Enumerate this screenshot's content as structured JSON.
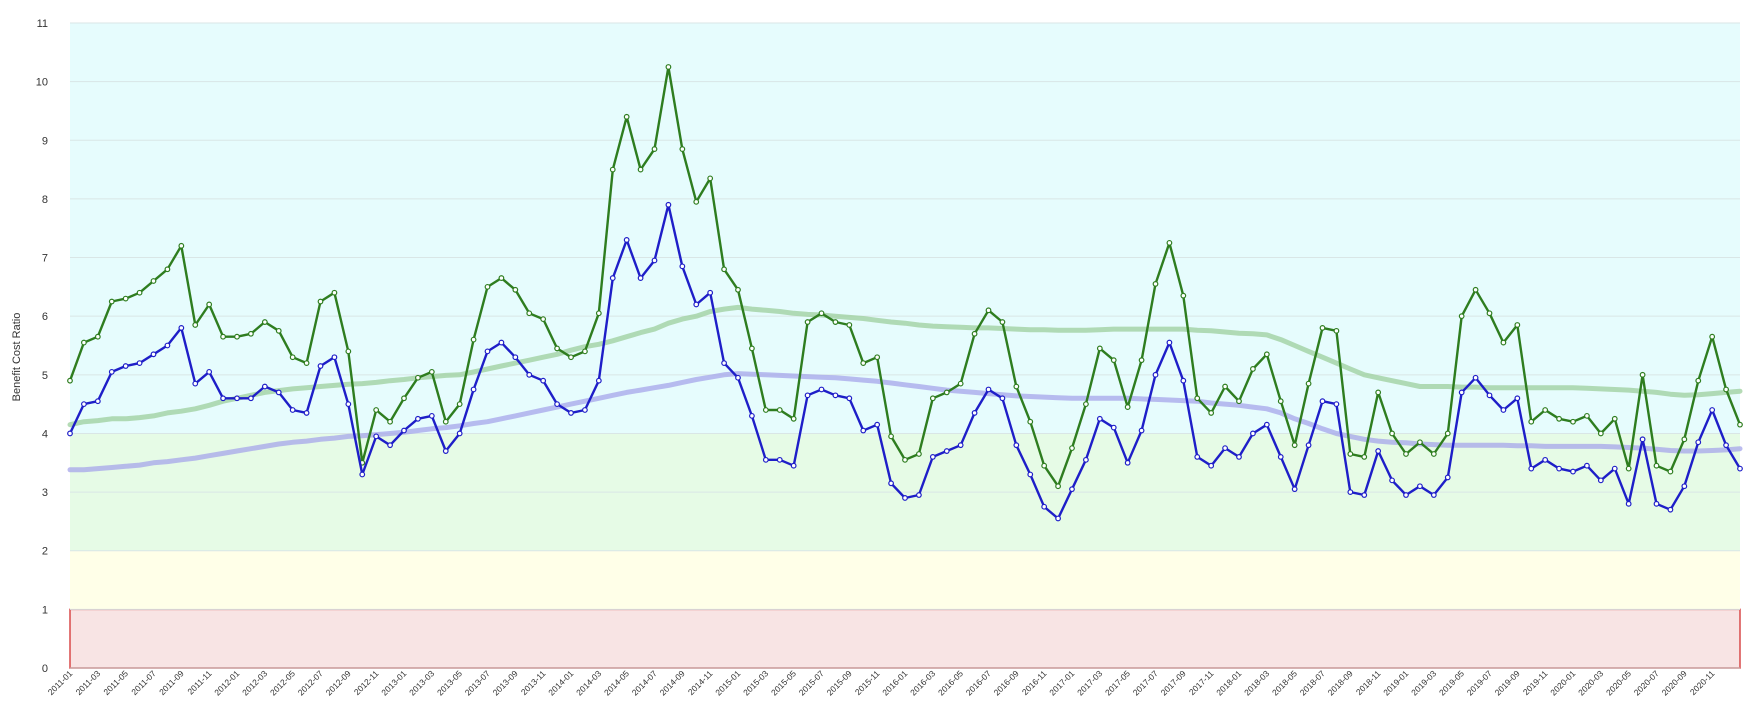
{
  "chart_data": {
    "type": "line",
    "title": "",
    "xlabel": "",
    "ylabel": "Benefit Cost Ratio",
    "ylim": [
      0,
      11
    ],
    "yticks": [
      "0",
      "1",
      "2",
      "3",
      "4",
      "5",
      "6",
      "7",
      "8",
      "9",
      "10",
      "11"
    ],
    "grid": true,
    "legend": "none",
    "bands": [
      {
        "from": 0,
        "to": 1,
        "color": "#f8e4e4",
        "outline": "#d94a4a"
      },
      {
        "from": 1,
        "to": 2,
        "color": "#ffffe8"
      },
      {
        "from": 2,
        "to": 4,
        "color": "#e6fbe6"
      },
      {
        "from": 4,
        "to": 11,
        "color": "#e6fcfd"
      }
    ],
    "xtick_labels": [
      "2011-01",
      "2011-03",
      "2011-05",
      "2011-07",
      "2011-09",
      "2011-11",
      "2012-01",
      "2012-03",
      "2012-05",
      "2012-07",
      "2012-09",
      "2012-11",
      "2013-01",
      "2013-03",
      "2013-05",
      "2013-07",
      "2013-09",
      "2013-11",
      "2014-01",
      "2014-03",
      "2014-05",
      "2014-07",
      "2014-09",
      "2014-11",
      "2015-01",
      "2015-03",
      "2015-05",
      "2015-07",
      "2015-09",
      "2015-11",
      "2016-01",
      "2016-03",
      "2016-05",
      "2016-07",
      "2016-09",
      "2016-11",
      "2017-01",
      "2017-03",
      "2017-05",
      "2017-07",
      "2017-09",
      "2017-11",
      "2018-01",
      "2018-03",
      "2018-05",
      "2018-07",
      "2018-09",
      "2018-11",
      "2019-01",
      "2019-03",
      "2019-05",
      "2019-07",
      "2019-09",
      "2019-11",
      "2020-01",
      "2020-03",
      "2020-05",
      "2020-07",
      "2020-09",
      "2020-11"
    ],
    "series": [
      {
        "color": "#2e7d1f",
        "marker": true,
        "values": [
          4.9,
          5.55,
          5.65,
          6.25,
          6.3,
          6.4,
          6.6,
          6.8,
          7.2,
          5.85,
          6.2,
          5.65,
          5.65,
          5.7,
          5.9,
          5.75,
          5.3,
          5.2,
          6.25,
          6.4,
          5.4,
          3.5,
          4.4,
          4.2,
          4.6,
          4.95,
          5.05,
          4.2,
          4.5,
          5.6,
          6.5,
          6.65,
          6.45,
          6.05,
          5.95,
          5.45,
          5.3,
          5.4,
          6.05,
          8.5,
          9.4,
          8.5,
          8.85,
          10.25,
          8.85,
          7.95,
          8.35,
          6.8,
          6.45,
          5.45,
          4.4,
          4.4,
          4.25,
          5.9,
          6.05,
          5.9,
          5.85,
          5.2,
          5.3,
          3.95,
          3.55,
          3.65,
          4.6,
          4.7,
          4.85,
          5.7,
          6.1,
          5.9,
          4.8,
          4.2,
          3.45,
          3.1,
          3.75,
          4.5,
          5.45,
          5.25,
          4.45,
          5.25,
          6.55,
          7.25,
          6.35,
          4.6,
          4.35,
          4.8,
          4.55,
          5.1,
          5.35,
          4.55,
          3.8,
          4.85,
          5.8,
          5.75,
          3.65,
          3.6,
          4.7,
          4.0,
          3.65,
          3.85,
          3.65,
          4.0,
          6.0,
          6.45,
          6.05,
          5.55,
          5.85,
          4.2,
          4.4,
          4.25,
          4.2,
          4.3,
          4.0,
          4.25,
          3.4,
          5.0,
          3.45,
          3.35,
          3.9,
          4.9,
          5.65,
          4.75,
          4.15
        ]
      },
      {
        "color": "#1e1ec8",
        "marker": true,
        "values": [
          4.0,
          4.5,
          4.55,
          5.05,
          5.15,
          5.2,
          5.35,
          5.5,
          5.8,
          4.85,
          5.05,
          4.6,
          4.6,
          4.6,
          4.8,
          4.7,
          4.4,
          4.35,
          5.15,
          5.3,
          4.5,
          3.3,
          3.95,
          3.8,
          4.05,
          4.25,
          4.3,
          3.7,
          4.0,
          4.75,
          5.4,
          5.55,
          5.3,
          5.0,
          4.9,
          4.5,
          4.35,
          4.4,
          4.9,
          6.65,
          7.3,
          6.65,
          6.95,
          7.9,
          6.85,
          6.2,
          6.4,
          5.2,
          4.95,
          4.3,
          3.55,
          3.55,
          3.45,
          4.65,
          4.75,
          4.65,
          4.6,
          4.05,
          4.15,
          3.15,
          2.9,
          2.95,
          3.6,
          3.7,
          3.8,
          4.35,
          4.75,
          4.6,
          3.8,
          3.3,
          2.75,
          2.55,
          3.05,
          3.55,
          4.25,
          4.1,
          3.5,
          4.05,
          5.0,
          5.55,
          4.9,
          3.6,
          3.45,
          3.75,
          3.6,
          4.0,
          4.15,
          3.6,
          3.05,
          3.8,
          4.55,
          4.5,
          3.0,
          2.95,
          3.7,
          3.2,
          2.95,
          3.1,
          2.95,
          3.25,
          4.7,
          4.95,
          4.65,
          4.4,
          4.6,
          3.4,
          3.55,
          3.4,
          3.35,
          3.45,
          3.2,
          3.4,
          2.8,
          3.9,
          2.8,
          2.7,
          3.1,
          3.85,
          4.4,
          3.8,
          3.4
        ]
      },
      {
        "color": "#9ccf9c",
        "marker": false,
        "values": [
          4.15,
          4.2,
          4.22,
          4.25,
          4.25,
          4.27,
          4.3,
          4.35,
          4.38,
          4.42,
          4.48,
          4.55,
          4.6,
          4.65,
          4.7,
          4.73,
          4.76,
          4.78,
          4.8,
          4.82,
          4.84,
          4.85,
          4.87,
          4.9,
          4.92,
          4.95,
          4.97,
          4.99,
          5.0,
          5.05,
          5.1,
          5.15,
          5.2,
          5.25,
          5.3,
          5.35,
          5.42,
          5.48,
          5.52,
          5.58,
          5.65,
          5.72,
          5.78,
          5.88,
          5.95,
          6.0,
          6.08,
          6.12,
          6.15,
          6.12,
          6.1,
          6.08,
          6.05,
          6.03,
          6.02,
          6.0,
          5.98,
          5.96,
          5.93,
          5.9,
          5.88,
          5.85,
          5.83,
          5.82,
          5.81,
          5.8,
          5.8,
          5.79,
          5.78,
          5.77,
          5.77,
          5.76,
          5.76,
          5.76,
          5.77,
          5.78,
          5.78,
          5.78,
          5.78,
          5.78,
          5.78,
          5.76,
          5.75,
          5.73,
          5.71,
          5.7,
          5.68,
          5.6,
          5.5,
          5.4,
          5.3,
          5.2,
          5.1,
          5.0,
          4.95,
          4.9,
          4.85,
          4.8,
          4.8,
          4.8,
          4.79,
          4.79,
          4.78,
          4.78,
          4.78,
          4.78,
          4.78,
          4.78,
          4.78,
          4.77,
          4.76,
          4.75,
          4.74,
          4.72,
          4.7,
          4.67,
          4.65,
          4.66,
          4.68,
          4.7,
          4.72
        ]
      },
      {
        "color": "#a5a5ea",
        "marker": false,
        "values": [
          3.38,
          3.38,
          3.4,
          3.42,
          3.44,
          3.46,
          3.5,
          3.52,
          3.55,
          3.58,
          3.62,
          3.66,
          3.7,
          3.74,
          3.78,
          3.82,
          3.85,
          3.87,
          3.9,
          3.92,
          3.95,
          3.96,
          3.98,
          4.0,
          4.02,
          4.05,
          4.08,
          4.1,
          4.13,
          4.17,
          4.2,
          4.25,
          4.3,
          4.35,
          4.4,
          4.45,
          4.5,
          4.55,
          4.6,
          4.65,
          4.7,
          4.74,
          4.78,
          4.82,
          4.87,
          4.92,
          4.96,
          5.0,
          5.02,
          5.01,
          5.0,
          4.99,
          4.98,
          4.97,
          4.96,
          4.95,
          4.93,
          4.91,
          4.89,
          4.86,
          4.83,
          4.8,
          4.77,
          4.74,
          4.72,
          4.7,
          4.68,
          4.66,
          4.64,
          4.63,
          4.62,
          4.61,
          4.6,
          4.6,
          4.6,
          4.6,
          4.6,
          4.59,
          4.58,
          4.57,
          4.56,
          4.55,
          4.52,
          4.5,
          4.48,
          4.45,
          4.42,
          4.35,
          4.25,
          4.17,
          4.08,
          4.0,
          3.95,
          3.9,
          3.87,
          3.85,
          3.84,
          3.82,
          3.81,
          3.8,
          3.8,
          3.8,
          3.8,
          3.8,
          3.79,
          3.79,
          3.78,
          3.78,
          3.78,
          3.78,
          3.78,
          3.77,
          3.76,
          3.75,
          3.73,
          3.71,
          3.7,
          3.7,
          3.71,
          3.72,
          3.74
        ]
      }
    ]
  }
}
